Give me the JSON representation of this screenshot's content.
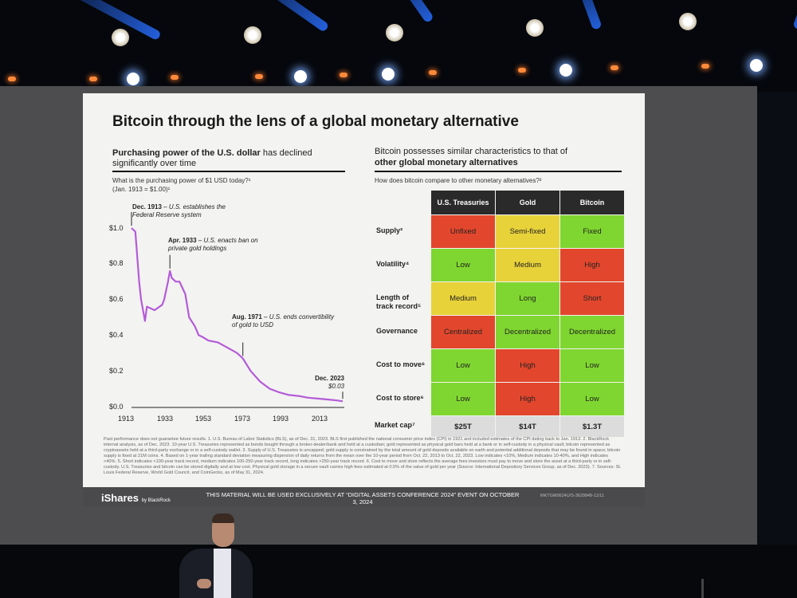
{
  "slide": {
    "title": "Bitcoin through the lens of a global monetary alternative",
    "left_heading_bold": "Purchasing power of the U.S. dollar",
    "left_heading_rest": " has declined significantly over time",
    "left_question": "What is the purchasing power of $1 USD today?¹",
    "left_baseline": "(Jan. 1913 = $1.00)¹",
    "right_heading_plain": "Bitcoin possesses similar characteristics to that of",
    "right_heading_bold": "other global monetary alternatives",
    "right_question": "How does bitcoin compare to other monetary alternatives?²"
  },
  "chart_data": {
    "type": "line",
    "title": "Purchasing power of the U.S. dollar",
    "xlabel": "",
    "ylabel": "",
    "ylim": [
      0,
      1.0
    ],
    "xlim": [
      1913,
      2023
    ],
    "x_ticks": [
      "1913",
      "1933",
      "1953",
      "1973",
      "1993",
      "2013"
    ],
    "y_ticks": [
      "$1.0",
      "$0.8",
      "$0.6",
      "$0.4",
      "$0.2",
      "$0.0"
    ],
    "series": [
      {
        "name": "Purchasing power of $1",
        "x": [
          1913,
          1915,
          1917,
          1918,
          1920,
          1921,
          1923,
          1925,
          1929,
          1930,
          1932,
          1933,
          1934,
          1936,
          1938,
          1941,
          1943,
          1946,
          1948,
          1950,
          1953,
          1958,
          1963,
          1968,
          1971,
          1975,
          1980,
          1985,
          1990,
          1995,
          2000,
          2005,
          2010,
          2015,
          2020,
          2023
        ],
        "y": [
          1.0,
          0.98,
          0.7,
          0.6,
          0.48,
          0.56,
          0.55,
          0.54,
          0.57,
          0.6,
          0.7,
          0.76,
          0.72,
          0.7,
          0.7,
          0.63,
          0.5,
          0.45,
          0.4,
          0.39,
          0.37,
          0.36,
          0.33,
          0.3,
          0.27,
          0.2,
          0.14,
          0.1,
          0.08,
          0.065,
          0.06,
          0.05,
          0.045,
          0.04,
          0.035,
          0.03
        ]
      }
    ],
    "annotations": [
      {
        "year": 1913,
        "value": 1.0,
        "label": "Dec. 1913",
        "text": "– U.S. establishes the Federal Reserve system"
      },
      {
        "year": 1933,
        "value": 0.76,
        "label": "Apr. 1933",
        "text": "– U.S. enacts ban on private gold holdings"
      },
      {
        "year": 1971,
        "value": 0.27,
        "label": "Aug. 1971",
        "text": "– U.S. ends convertibility of gold to USD"
      },
      {
        "year": 2023,
        "value": 0.03,
        "label": "Dec. 2023",
        "text": "$0.03"
      }
    ]
  },
  "table": {
    "columns": [
      "U.S. Treasuries",
      "Gold",
      "Bitcoin"
    ],
    "rows": [
      {
        "label": "Supply³",
        "values": [
          "Unfixed",
          "Semi-fixed",
          "Fixed"
        ],
        "ratings": [
          "red",
          "yellow",
          "green"
        ]
      },
      {
        "label": "Volatility⁴",
        "values": [
          "Low",
          "Medium",
          "High"
        ],
        "ratings": [
          "green",
          "yellow",
          "red"
        ]
      },
      {
        "label": "Length of track record⁵",
        "values": [
          "Medium",
          "Long",
          "Short"
        ],
        "ratings": [
          "yellow",
          "green",
          "red"
        ]
      },
      {
        "label": "Governance",
        "values": [
          "Centralized",
          "Decentralized",
          "Decentralized"
        ],
        "ratings": [
          "red",
          "green",
          "green"
        ]
      },
      {
        "label": "Cost to move⁶",
        "values": [
          "Low",
          "High",
          "Low"
        ],
        "ratings": [
          "green",
          "red",
          "green"
        ]
      },
      {
        "label": "Cost to store⁶",
        "values": [
          "Low",
          "High",
          "Low"
        ],
        "ratings": [
          "green",
          "red",
          "green"
        ]
      }
    ],
    "market_cap_label": "Market cap⁷",
    "market_cap_values": [
      "$25T",
      "$14T",
      "$1.3T"
    ]
  },
  "colors": {
    "red": "#e2472d",
    "yellow": "#e8d23a",
    "green": "#7fd630",
    "line": "#b45bd8"
  },
  "footer": {
    "disclaimer": "Past performance does not guarantee future results. 1. U.S. Bureau of Labor Statistics (BLS), as of Dec. 31, 2023. BLS first published the national consumer price index (CPI) in 1921 and included estimates of the CPI dating back to Jan. 1913. 2. BlackRock internal analysis, as of Dec. 2023. 10-year U.S. Treasuries represented as bonds bought through a broker-dealer/bank and held at a custodian; gold represented as physical gold bars held at a bank or in self-custody in a physical vault; bitcoin represented as cryptoassets held at a third-party exchange or in a self-custody wallet. 3. Supply of U.S. Treasuries is uncapped; gold supply is constrained by the total amount of gold deposits available on earth and potential additional deposits that may be found in space; bitcoin supply is fixed at 21M coins. 4. Based on 1-year trailing standard deviation measuring dispersion of daily returns from the mean over the 10-year period from Oct. 22, 2013 to Oct. 22, 2023. Low indicates <10%, Medium indicates 10-40%, and High indicates >40%. 5. Short indicates <100-year track record, medium indicates 100-250-year track record, long indicates >250-year track record. 6. Cost to move and store reflects the average fees investors must pay to move and store the asset at a third-party or in self-custody. U.S. Treasuries and bitcoin can be stored digitally and at low cost. Physical gold storage in a secure vault carries high fees estimated at 0.5% of the value of gold per year (Source: International Depository Services Group, as of Dec. 2023). 7. Sources: St. Louis Federal Reserve, World Gold Council, and CoinGecko, as of May 31, 2024.",
    "brand": "iShares",
    "brand_sub": "by BlackRock",
    "material_note": "THIS MATERIAL WILL BE USED EXCLUSIVELY AT “DIGITAL ASSETS CONFERENCE 2024” EVENT ON OCTOBER 3, 2024",
    "code": "MKTGM0624U/S-3629849-11/11"
  }
}
